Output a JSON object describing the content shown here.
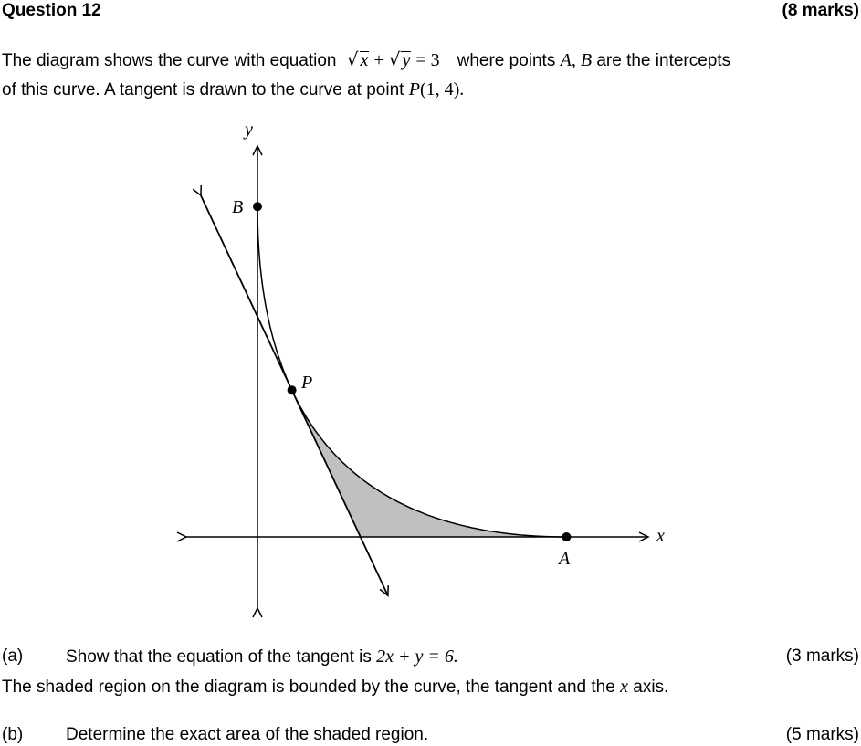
{
  "question": {
    "title": "Question 12",
    "marks": "(8 marks)"
  },
  "intro": {
    "line1_a": "The diagram shows the curve with equation",
    "eq_x": "x",
    "eq_plus": "+",
    "eq_y": "y",
    "eq_equals": "= 3",
    "line1_b": "where points",
    "points_ab": "A, B",
    "line1_c": "are the intercepts",
    "line2_a": "of this curve.  A tangent is drawn to the curve at point",
    "point_p": "P",
    "point_p_coords": "(1, 4)."
  },
  "diagram": {
    "y_axis_label": "y",
    "x_axis_label": "x",
    "point_a_label": "A",
    "point_b_label": "B",
    "point_p_label": "P",
    "curve_equation": "√x + √y = 3",
    "intercept_a": [
      9,
      0
    ],
    "intercept_b": [
      0,
      9
    ],
    "point_p": [
      1,
      4
    ],
    "tangent_equation": "2x + y = 6",
    "shade_color": "#c0c0c0"
  },
  "part_a": {
    "label": "(a)",
    "text": "Show that the equation of the tangent is",
    "equation": "2x + y = 6.",
    "marks": "(3 marks)"
  },
  "shaded_note": {
    "text_a": "The shaded region on the diagram is bounded by the curve, the tangent and the",
    "var": "x",
    "text_b": "axis."
  },
  "part_b": {
    "label": "(b)",
    "text": "Determine the exact area of the shaded region.",
    "marks": "(5 marks)"
  }
}
